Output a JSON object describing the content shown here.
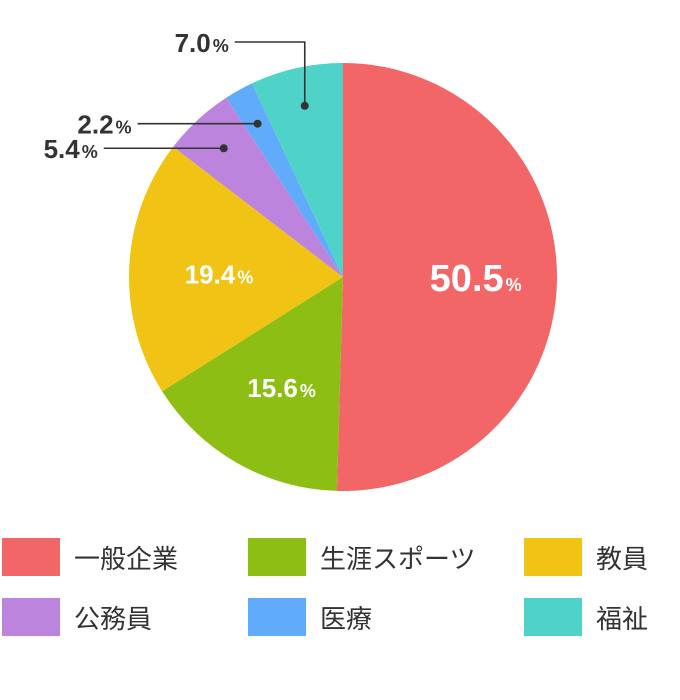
{
  "chart_data": {
    "type": "pie",
    "slices": [
      {
        "label": "一般企業",
        "value": 50.5,
        "display": "50.5",
        "color": "#F26667"
      },
      {
        "label": "生涯スポーツ",
        "value": 15.6,
        "display": "15.6",
        "color": "#8CBE14"
      },
      {
        "label": "教員",
        "value": 19.4,
        "display": "19.4",
        "color": "#F0C314"
      },
      {
        "label": "公務員",
        "value": 5.4,
        "display": "5.4",
        "color": "#BD84DE"
      },
      {
        "label": "医療",
        "value": 2.2,
        "display": "2.2",
        "color": "#61ACFA"
      },
      {
        "label": "福祉",
        "value": 7.0,
        "display": "7.0",
        "color": "#4FD3C9"
      }
    ],
    "unit": "%",
    "legend_position": "bottom"
  }
}
